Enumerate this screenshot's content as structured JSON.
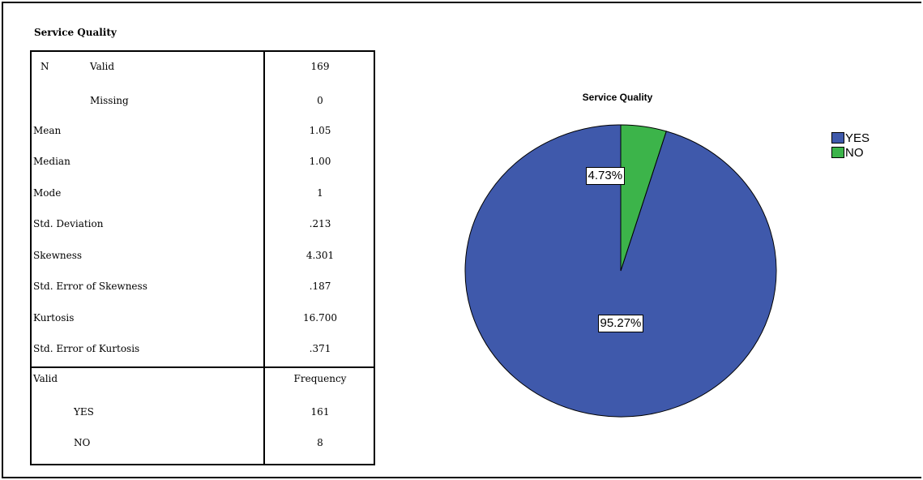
{
  "table": {
    "title": "Service Quality",
    "rows": [
      {
        "label_a": "N",
        "label_b": "Valid",
        "value": "169"
      },
      {
        "label_a": "",
        "label_b": "Missing",
        "value": "0"
      },
      {
        "label": "Mean",
        "value": "1.05"
      },
      {
        "label": "Median",
        "value": "1.00"
      },
      {
        "label": "Mode",
        "value": "1"
      },
      {
        "label": "Std. Deviation",
        "value": ".213"
      },
      {
        "label": "Skewness",
        "value": "4.301"
      },
      {
        "label": "Std. Error of Skewness",
        "value": ".187"
      },
      {
        "label": "Kurtosis",
        "value": "16.700"
      },
      {
        "label": "Std. Error of Kurtosis",
        "value": ".371"
      }
    ],
    "freq_header": {
      "label": "Valid",
      "value": "Frequency"
    },
    "freq_rows": [
      {
        "label": "YES",
        "value": "161"
      },
      {
        "label": "NO",
        "value": "8"
      }
    ]
  },
  "chart_data": {
    "type": "pie",
    "title": "Service Quality",
    "categories": [
      "YES",
      "NO"
    ],
    "values": [
      95.27,
      4.73
    ],
    "labels": [
      "95.27%",
      "4.73%"
    ],
    "colors": [
      "#3f59ab",
      "#3cb44a"
    ],
    "legend": "top-right"
  }
}
